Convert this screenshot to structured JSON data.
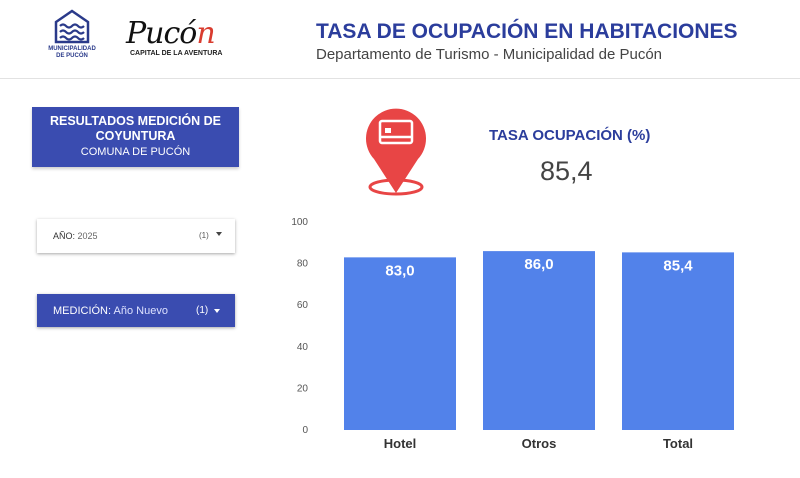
{
  "header": {
    "muni_logo_text": [
      "MUNICIPALIDAD",
      "DE PUCÓN"
    ],
    "pucon_logo_word": "Pucón",
    "pucon_logo_tagline": "CAPITAL DE LA AVENTURA",
    "title": "TASA DE OCUPACIÓN EN HABITACIONES",
    "subtitle": "Departamento de Turismo - Municipalidad de Pucón"
  },
  "results_panel": {
    "line1": "RESULTADOS MEDICIÓN DE",
    "line2": "COYUNTURA",
    "line3": "COMUNA DE PUCÓN"
  },
  "filters": {
    "year": {
      "label": "AÑO",
      "value": "2025",
      "count": "(1)"
    },
    "measurement": {
      "label": "MEDICIÓN",
      "value": "Año Nuevo",
      "count": "(1)"
    }
  },
  "kpi": {
    "label": "TASA OCUPACIÓN (%)",
    "value": "85,4",
    "icon": "hotel-bed-location-pin-icon"
  },
  "colors": {
    "brand_blue": "#2b3d9c",
    "panel_blue": "#3a4cb0",
    "bar_blue": "#5282ea",
    "pin_red": "#e84545"
  },
  "chart_data": {
    "type": "bar",
    "categories": [
      "Hotel",
      "Otros",
      "Total"
    ],
    "values": [
      83.0,
      86.0,
      85.4
    ],
    "data_labels": [
      "83,0",
      "86,0",
      "85,4"
    ],
    "ylim": [
      0,
      100
    ],
    "yticks": [
      0,
      20,
      40,
      60,
      80,
      100
    ],
    "grid": false,
    "legend": "none"
  }
}
